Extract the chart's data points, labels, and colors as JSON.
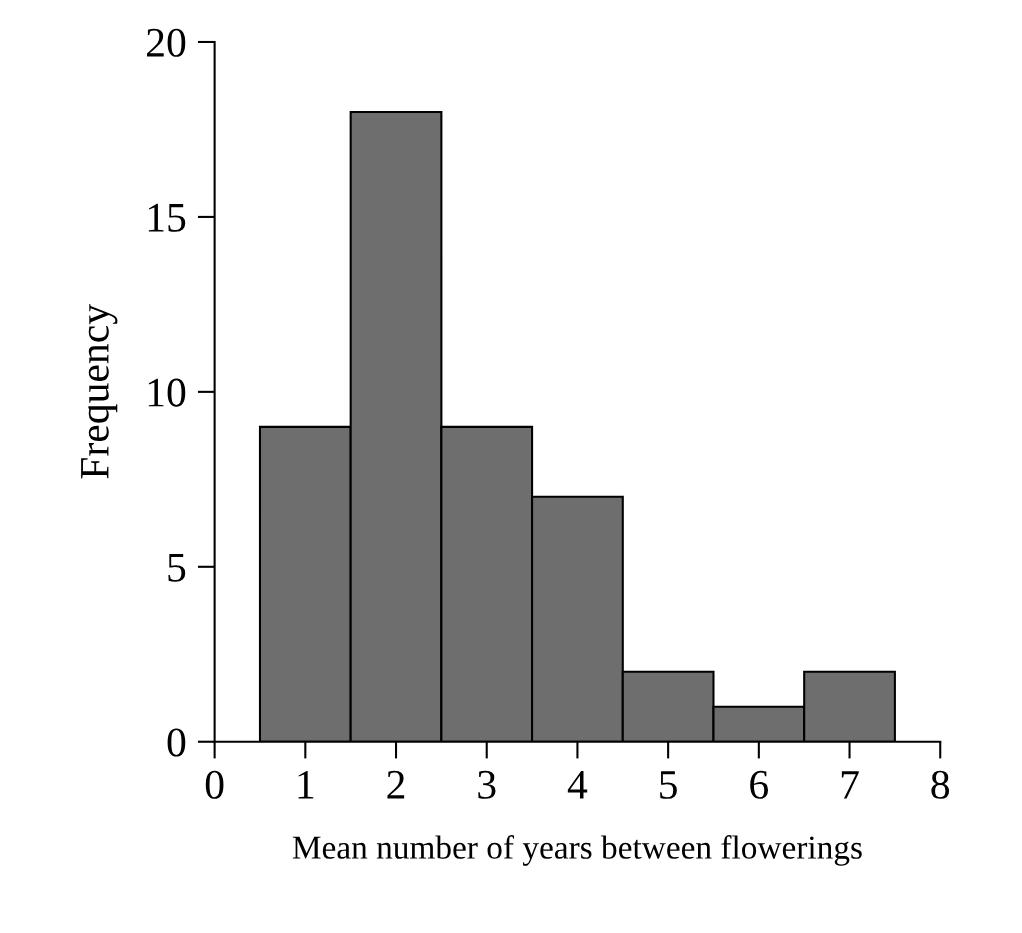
{
  "chart_data": {
    "type": "histogram",
    "xlabel": "Mean number of years between flowerings",
    "ylabel": "Frequency",
    "bins": [
      0.5,
      1.5,
      2.5,
      3.5,
      4.5,
      5.5,
      6.5,
      7.5
    ],
    "values": [
      9,
      18,
      9,
      7,
      2,
      1,
      2
    ],
    "color": "#6e6e6e",
    "xlim": [
      0,
      8
    ],
    "xticks": [
      0,
      1,
      2,
      3,
      4,
      5,
      6,
      7,
      8
    ],
    "ylim": [
      0,
      20
    ],
    "yticks": [
      0,
      5,
      10,
      15,
      20
    ],
    "grid": false
  }
}
